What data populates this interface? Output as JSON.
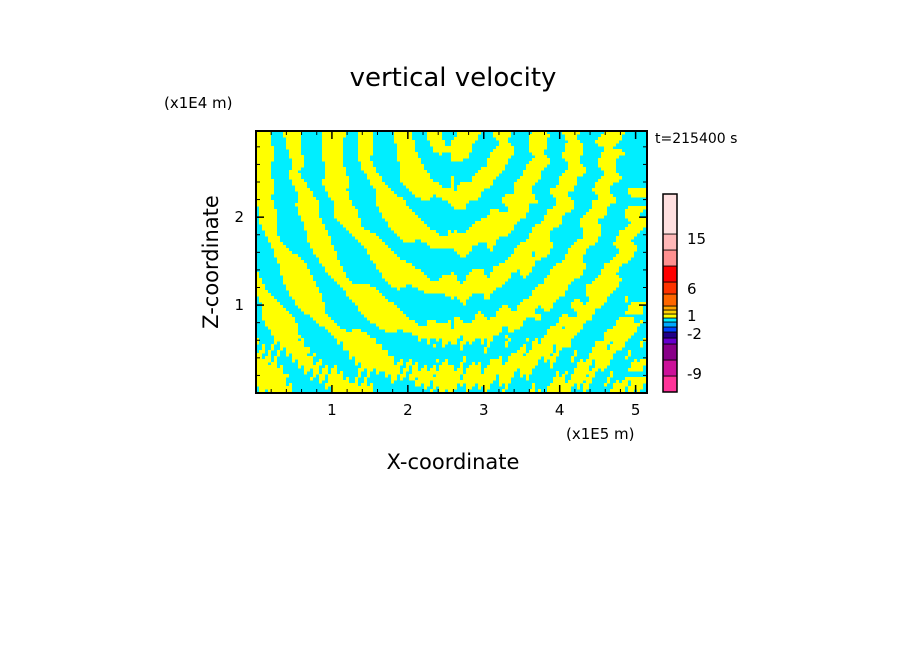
{
  "chart_data": {
    "type": "heatmap",
    "title": "vertical velocity",
    "xlabel": "X-coordinate",
    "ylabel": "Z-coordinate",
    "x_unit": "(x1E5 m)",
    "y_unit": "(x1E4 m)",
    "time_label": "t=215400 s",
    "xlim": [
      0,
      5.15
    ],
    "ylim": [
      0,
      2.98
    ],
    "x_ticks": [
      1,
      2,
      3,
      4,
      5
    ],
    "x_tick_labels": [
      "1",
      "2",
      "3",
      "4",
      "5"
    ],
    "y_ticks": [
      1,
      2
    ],
    "y_tick_labels": [
      "1",
      "2"
    ],
    "field_colors": {
      "positive": "#ffff00",
      "negative": "#00eeff"
    },
    "colorbar": {
      "levels": [
        {
          "color": "#ff3399"
        },
        {
          "color": "#cc1199"
        },
        {
          "color": "#880088"
        },
        {
          "color": "#6600cc"
        },
        {
          "color": "#220088"
        },
        {
          "color": "#0044ff"
        },
        {
          "color": "#00aaff"
        },
        {
          "color": "#00eeff"
        },
        {
          "color": "#ffff00"
        },
        {
          "color": "#ffd000"
        },
        {
          "color": "#ffa500"
        },
        {
          "color": "#ff6600"
        },
        {
          "color": "#ff3300"
        },
        {
          "color": "#ff0000"
        },
        {
          "color": "#ff9090"
        },
        {
          "color": "#ffb8b8"
        },
        {
          "color": "#ffe0e0"
        }
      ],
      "labels": [
        "15",
        "6",
        "1",
        "-2",
        "-9"
      ]
    }
  }
}
